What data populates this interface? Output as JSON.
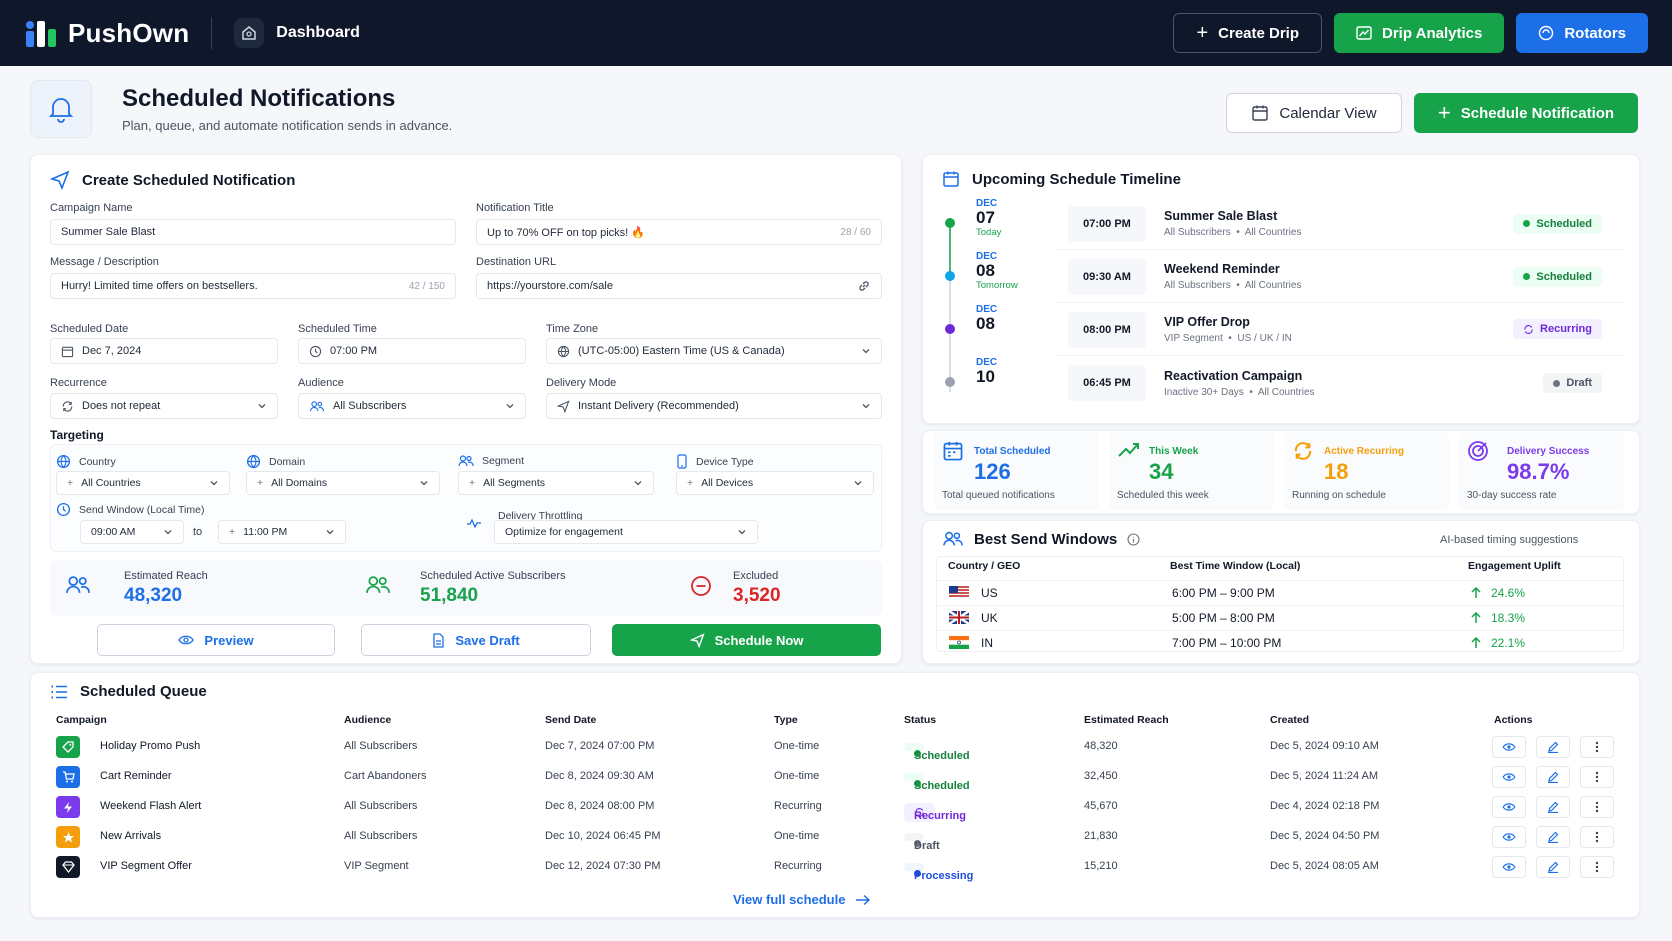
{
  "app": {
    "name": "PushOwn",
    "section": "Dashboard"
  },
  "top_actions": {
    "create": "Create Drip",
    "analytics": "Drip Analytics",
    "rotators": "Rotators"
  },
  "header": {
    "title": "Scheduled Notifications",
    "subtitle": "Plan, queue, and automate notification sends in advance.",
    "calendar_btn": "Calendar View",
    "schedule_btn": "Schedule Notification"
  },
  "form": {
    "title": "Create Scheduled Notification",
    "campaign_label": "Campaign Name",
    "campaign_value": "Summer Sale Blast",
    "ntitle_label": "Notification Title",
    "ntitle_value": "Up to 70% OFF on top picks! 🔥",
    "ntitle_count": "28 / 60",
    "msg_label": "Message / Description",
    "msg_value": "Hurry! Limited time offers on bestsellers.",
    "msg_count": "42 / 150",
    "url_label": "Destination URL",
    "url_value": "https://yourstore.com/sale",
    "date_label": "Scheduled Date",
    "date_value": "Dec 7, 2024",
    "time_label": "Scheduled Time",
    "time_value": "07:00 PM",
    "tz_label": "Time Zone",
    "tz_value": "(UTC-05:00) Eastern Time (US & Canada)",
    "rec_label": "Recurrence",
    "rec_value": "Does not repeat",
    "aud_label": "Audience",
    "aud_value": "All Subscribers",
    "mode_label": "Delivery Mode",
    "mode_value": "Instant Delivery (Recommended)",
    "targeting": "Targeting",
    "country_label": "Country",
    "country_value": "All Countries",
    "domain_label": "Domain",
    "domain_value": "All Domains",
    "segment_label": "Segment",
    "segment_value": "All Segments",
    "device_label": "Device Type",
    "device_value": "All Devices",
    "window_label": "Send Window (Local Time)",
    "window_from": "09:00 AM",
    "window_to_word": "to",
    "window_to": "11:00 PM",
    "throttle_label": "Delivery Throttling",
    "throttle_value": "Optimize for engagement",
    "reach_label": "Estimated Reach",
    "reach_value": "48,320",
    "active_label": "Scheduled Active Subscribers",
    "active_value": "51,840",
    "excluded_label": "Excluded",
    "excluded_value": "3,520",
    "preview_btn": "Preview",
    "draft_btn": "Save Draft",
    "now_btn": "Schedule Now"
  },
  "timeline": {
    "title": "Upcoming Schedule Timeline",
    "items": [
      {
        "month": "DEC",
        "day": "07",
        "rel": "Today",
        "time": "07:00 PM",
        "name": "Summer Sale Blast",
        "aud": "All Subscribers",
        "geo": "All Countries",
        "status": "Scheduled"
      },
      {
        "month": "DEC",
        "day": "08",
        "rel": "Tomorrow",
        "time": "09:30 AM",
        "name": "Weekend Reminder",
        "aud": "All Subscribers",
        "geo": "All Countries",
        "status": "Scheduled"
      },
      {
        "month": "DEC",
        "day": "08",
        "rel": "",
        "time": "08:00 PM",
        "name": "VIP Offer Drop",
        "aud": "VIP Segment",
        "geo": "US / UK / IN",
        "status": "Recurring"
      },
      {
        "month": "DEC",
        "day": "10",
        "rel": "",
        "time": "06:45 PM",
        "name": "Reactivation Campaign",
        "aud": "Inactive 30+ Days",
        "geo": "All Countries",
        "status": "Draft"
      }
    ]
  },
  "stats": [
    {
      "label": "Total Scheduled",
      "value": "126",
      "sub": "Total queued notifications",
      "color": "#1d6fe8"
    },
    {
      "label": "This Week",
      "value": "34",
      "sub": "Scheduled this week",
      "color": "#16a34a"
    },
    {
      "label": "Active Recurring",
      "value": "18",
      "sub": "Running on schedule",
      "color": "#f59e0b"
    },
    {
      "label": "Delivery Success",
      "value": "98.7%",
      "sub": "30-day success rate",
      "color": "#7c3aed"
    }
  ],
  "windows": {
    "title": "Best Send Windows",
    "hint": "AI-based timing suggestions",
    "headers": [
      "Country / GEO",
      "Best Time Window (Local)",
      "Engagement Uplift"
    ],
    "rows": [
      {
        "geo": "US",
        "window": "6:00 PM – 9:00 PM",
        "uplift": "24.6%"
      },
      {
        "geo": "UK",
        "window": "5:00 PM – 8:00 PM",
        "uplift": "18.3%"
      },
      {
        "geo": "IN",
        "window": "7:00 PM – 10:00 PM",
        "uplift": "22.1%"
      }
    ]
  },
  "queue": {
    "title": "Scheduled Queue",
    "headers": [
      "Campaign",
      "Audience",
      "Send Date",
      "Type",
      "Status",
      "Estimated Reach",
      "Created",
      "Actions"
    ],
    "rows": [
      {
        "campaign": "Holiday Promo Push",
        "audience": "All Subscribers",
        "date": "Dec 7, 2024 07:00 PM",
        "type": "One-time",
        "status": "Scheduled",
        "reach": "48,320",
        "created": "Dec 5, 2024 09:10 AM",
        "icon_color": "#16a34a"
      },
      {
        "campaign": "Cart Reminder",
        "audience": "Cart Abandoners",
        "date": "Dec 8, 2024 09:30 AM",
        "type": "One-time",
        "status": "Scheduled",
        "reach": "32,450",
        "created": "Dec 5, 2024 11:24 AM",
        "icon_color": "#1d6fe8"
      },
      {
        "campaign": "Weekend Flash Alert",
        "audience": "All Subscribers",
        "date": "Dec 8, 2024 08:00 PM",
        "type": "Recurring",
        "status": "Recurring",
        "reach": "45,670",
        "created": "Dec 4, 2024 02:18 PM",
        "icon_color": "#7c3aed"
      },
      {
        "campaign": "New Arrivals",
        "audience": "All Subscribers",
        "date": "Dec 10, 2024 06:45 PM",
        "type": "One-time",
        "status": "Draft",
        "reach": "21,830",
        "created": "Dec 5, 2024 04:50 PM",
        "icon_color": "#f59e0b"
      },
      {
        "campaign": "VIP Segment Offer",
        "audience": "VIP Segment",
        "date": "Dec 12, 2024 07:30 PM",
        "type": "Recurring",
        "status": "Processing",
        "reach": "15,210",
        "created": "Dec 5, 2024 08:05 AM",
        "icon_color": "#111827"
      }
    ],
    "view_all": "View full schedule"
  }
}
